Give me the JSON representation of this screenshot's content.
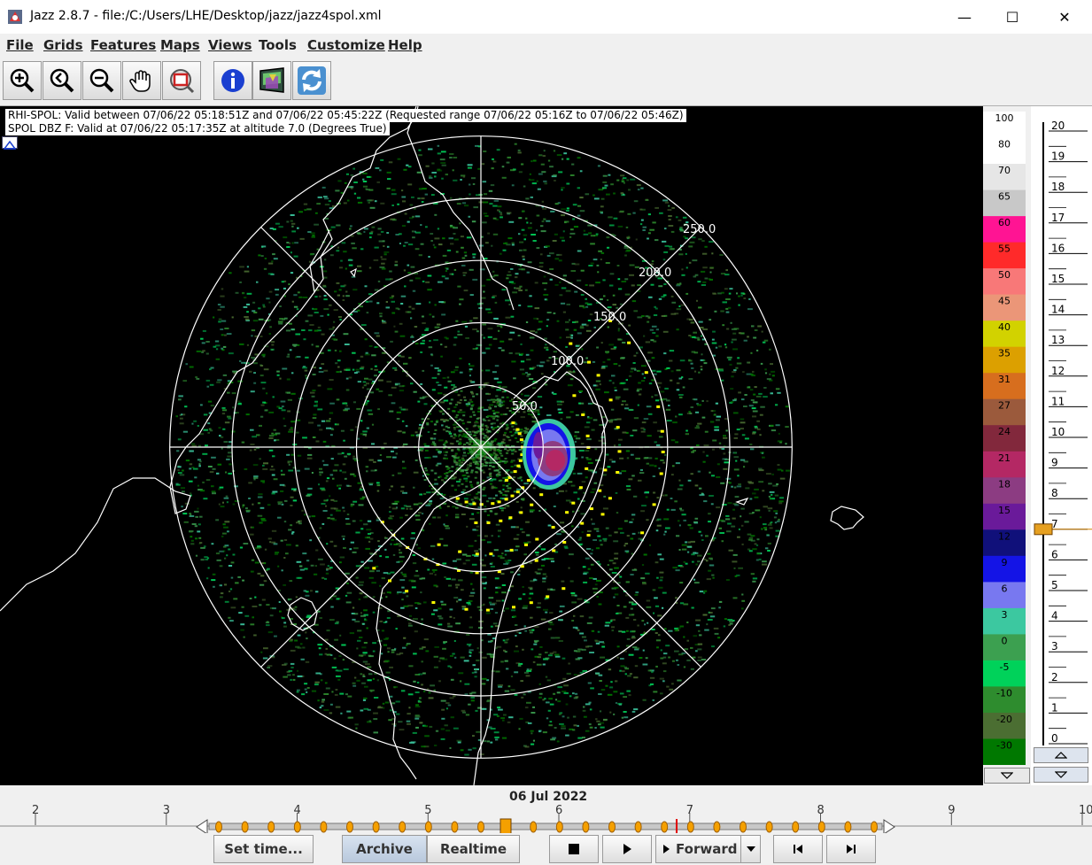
{
  "window": {
    "title": "Jazz 2.8.7 - file:/C:/Users/LHE/Desktop/jazz/jazz4spol.xml"
  },
  "menu": [
    "File",
    "Grids",
    "Features",
    "Maps",
    "Views",
    "Tools",
    "Customize",
    "Help"
  ],
  "menu_underlined": [
    true,
    true,
    true,
    true,
    true,
    false,
    true,
    true
  ],
  "toolbar": [
    "zoom-in-icon",
    "zoom-back-icon",
    "zoom-out-icon",
    "pan-hand-icon",
    "reset-zoom-icon",
    "info-icon",
    "layers-icon",
    "refresh-icon"
  ],
  "info": {
    "line1": "RHI-SPOL: Valid between 07/06/22 05:18:51Z  and 07/06/22 05:45:22Z (Requested range 07/06/22 05:16Z to 07/06/22 05:46Z)",
    "line2": "SPOL DBZ F: Valid at 07/06/22 05:17:35Z at altitude 7.0 (Degrees True)"
  },
  "range_labels": [
    "50.0",
    "100.0",
    "150.0",
    "200.0",
    "250.0"
  ],
  "colorscale": [
    {
      "label": "100",
      "color": "#ffffff"
    },
    {
      "label": "80",
      "color": "#ffffff"
    },
    {
      "label": "70",
      "color": "#e6e6e6"
    },
    {
      "label": "65",
      "color": "#c8c8c8"
    },
    {
      "label": "60",
      "color": "#ff1493"
    },
    {
      "label": "55",
      "color": "#ff2a2a"
    },
    {
      "label": "50",
      "color": "#f87878"
    },
    {
      "label": "45",
      "color": "#eb9678"
    },
    {
      "label": "40",
      "color": "#d2d200"
    },
    {
      "label": "35",
      "color": "#dca000"
    },
    {
      "label": "31",
      "color": "#d76e1e"
    },
    {
      "label": "27",
      "color": "#9b5a3c"
    },
    {
      "label": "24",
      "color": "#82283c"
    },
    {
      "label": "21",
      "color": "#b42864"
    },
    {
      "label": "18",
      "color": "#8c3c82"
    },
    {
      "label": "15",
      "color": "#6a1a9a"
    },
    {
      "label": "12",
      "color": "#10107a"
    },
    {
      "label": "9",
      "color": "#1414e6"
    },
    {
      "label": "6",
      "color": "#7878f0"
    },
    {
      "label": "3",
      "color": "#3cc8a0"
    },
    {
      "label": "0",
      "color": "#3ca050"
    },
    {
      "label": "-5",
      "color": "#00d25a"
    },
    {
      "label": "-10",
      "color": "#2e8c2e"
    },
    {
      "label": "-20",
      "color": "#4b6e32"
    },
    {
      "label": "-30",
      "color": "#007800"
    }
  ],
  "altitude": {
    "ticks": [
      "20",
      "19",
      "18",
      "17",
      "16",
      "15",
      "14",
      "13",
      "12",
      "11",
      "10",
      "9",
      "8",
      "7",
      "6",
      "5",
      "4",
      "3",
      "2",
      "1",
      "0"
    ],
    "current": 7.0
  },
  "timeline": {
    "date": "06 Jul 2022",
    "hours": [
      "2",
      "3",
      "4",
      "5",
      "6",
      "7",
      "8",
      "9",
      "10"
    ]
  },
  "controls": {
    "set_time": "Set time...",
    "archive": "Archive",
    "realtime": "Realtime",
    "direction": "Forward"
  }
}
